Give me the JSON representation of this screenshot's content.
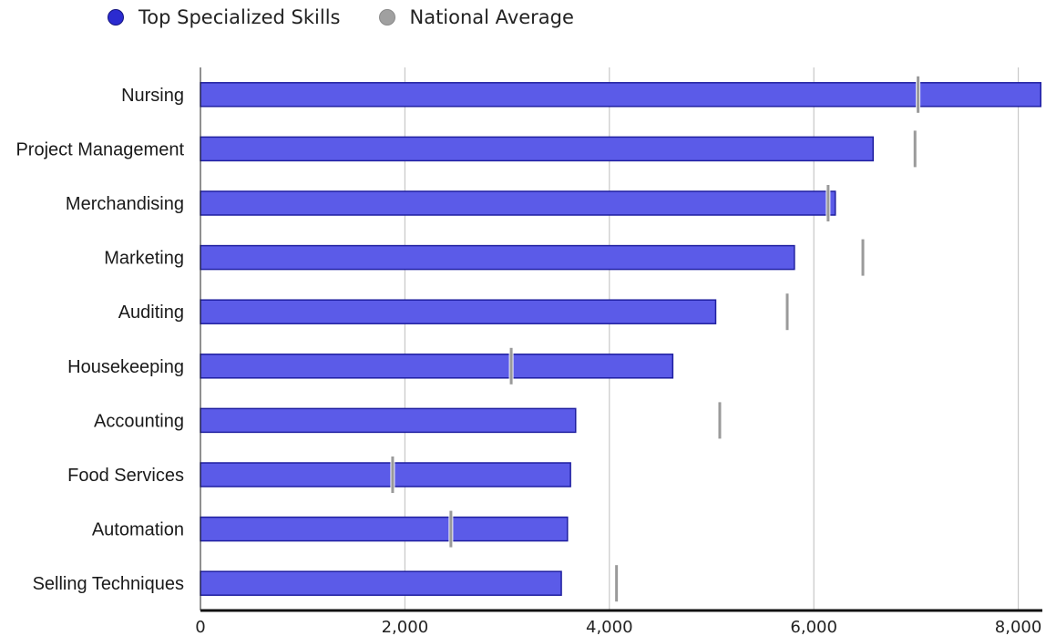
{
  "chart_data": {
    "type": "bar",
    "orientation": "horizontal",
    "categories": [
      "Nursing",
      "Project Management",
      "Merchandising",
      "Marketing",
      "Auditing",
      "Housekeeping",
      "Accounting",
      "Food Services",
      "Automation",
      "Selling Techniques"
    ],
    "series": [
      {
        "name": "Top Specialized Skills",
        "values": [
          8220,
          6580,
          6210,
          5810,
          5040,
          4620,
          3670,
          3620,
          3590,
          3530
        ]
      },
      {
        "name": "National Average",
        "values": [
          7020,
          6990,
          6140,
          6480,
          5740,
          3040,
          5080,
          1880,
          2450,
          4070
        ]
      }
    ],
    "xlim": [
      0,
      8200
    ],
    "xticks": [
      0,
      2000,
      4000,
      6000,
      8000
    ],
    "xtick_labels": [
      "0",
      "2,000",
      "4,000",
      "6,000",
      "8,000"
    ],
    "grid": "vertical",
    "legend_position": "top-left",
    "colors": {
      "bar": "#5b5be8",
      "bar_border": "#1f1fa0",
      "marker": "#9a9a9a",
      "legend_series": "#2b2bd0",
      "legend_average": "#a0a0a0"
    }
  }
}
